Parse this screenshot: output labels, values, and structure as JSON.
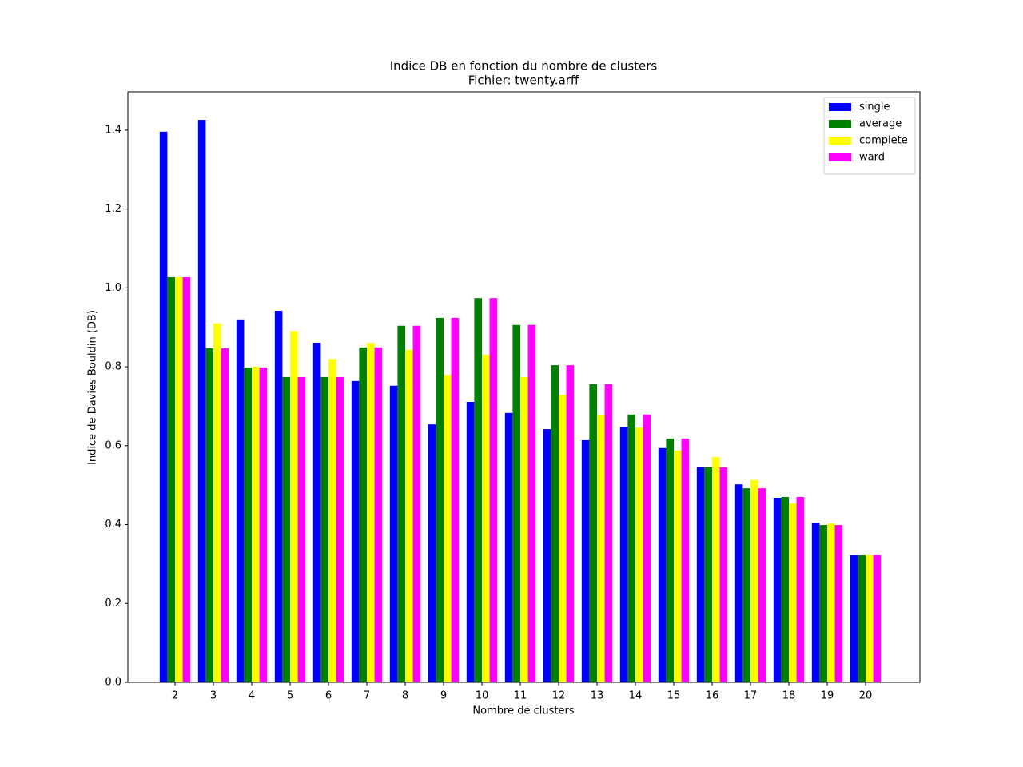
{
  "chart_data": {
    "type": "bar",
    "title": "Indice DB en fonction du nombre de clusters",
    "subtitle": "Fichier: twenty.arff",
    "x_label": "Nombre de clusters",
    "y_label": "Indice de Davies Bouldin (DB)",
    "categories": [
      "2",
      "3",
      "4",
      "5",
      "6",
      "7",
      "8",
      "9",
      "10",
      "11",
      "12",
      "13",
      "14",
      "15",
      "16",
      "17",
      "18",
      "19",
      "20"
    ],
    "series": [
      {
        "name": "single",
        "color": "#0000ff",
        "values": [
          1.396,
          1.426,
          0.92,
          0.942,
          0.861,
          0.764,
          0.752,
          0.654,
          0.711,
          0.683,
          0.642,
          0.614,
          0.648,
          0.594,
          0.545,
          0.502,
          0.468,
          0.405,
          0.322
        ]
      },
      {
        "name": "average",
        "color": "#008000",
        "values": [
          1.027,
          0.847,
          0.798,
          0.774,
          0.774,
          0.849,
          0.904,
          0.924,
          0.974,
          0.906,
          0.804,
          0.756,
          0.679,
          0.618,
          0.545,
          0.492,
          0.47,
          0.399,
          0.322
        ]
      },
      {
        "name": "complete",
        "color": "#ffff00",
        "values": [
          1.027,
          0.91,
          0.8,
          0.891,
          0.82,
          0.861,
          0.843,
          0.78,
          0.831,
          0.774,
          0.729,
          0.677,
          0.646,
          0.588,
          0.571,
          0.513,
          0.454,
          0.403,
          0.322
        ]
      },
      {
        "name": "ward",
        "color": "#ff00ff",
        "values": [
          1.027,
          0.847,
          0.798,
          0.774,
          0.774,
          0.849,
          0.904,
          0.924,
          0.974,
          0.906,
          0.804,
          0.756,
          0.679,
          0.618,
          0.545,
          0.492,
          0.47,
          0.399,
          0.322
        ]
      }
    ],
    "ylim": [
      0,
      1.497
    ],
    "yticks": [
      {
        "value": 0,
        "label": "0.0"
      },
      0.2,
      0.4,
      0.6,
      0.8,
      {
        "value": 1,
        "label": "1.0"
      },
      1.2,
      1.4
    ],
    "legend": "upper right",
    "grid": false
  }
}
